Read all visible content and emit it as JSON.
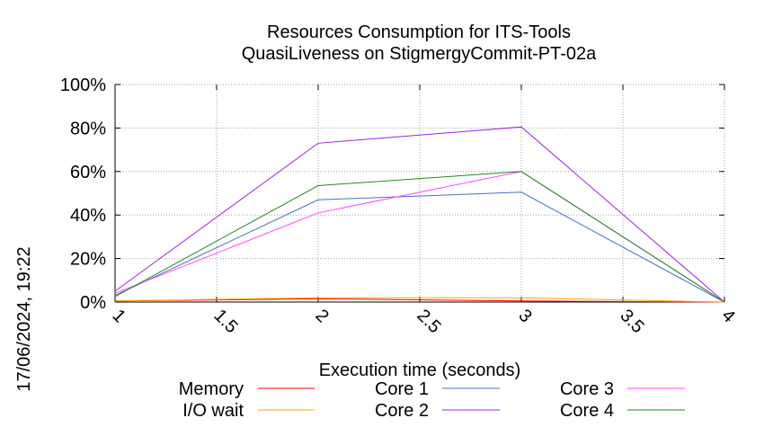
{
  "chart_data": {
    "type": "line",
    "title_line1": "Resources Consumption for ITS-Tools",
    "title_line2": "QuasiLiveness on StigmergyCommit-PT-02a",
    "xlabel": "Execution time (seconds)",
    "ylabel": "",
    "side_label": "17/06/2024, 19:22",
    "xlim": [
      1,
      4
    ],
    "ylim": [
      0,
      100
    ],
    "x_ticks": [
      1,
      1.5,
      2,
      2.5,
      3,
      3.5,
      4
    ],
    "x_tick_labels": [
      "1",
      "1.5",
      "2",
      "2.5",
      "3",
      "3.5",
      "4"
    ],
    "y_ticks": [
      0,
      20,
      40,
      60,
      80,
      100
    ],
    "y_tick_labels": [
      "0%",
      "20%",
      "40%",
      "60%",
      "80%",
      "100%"
    ],
    "grid": true,
    "legend_position": "bottom",
    "x": [
      1,
      2,
      3,
      4
    ],
    "series": [
      {
        "name": "Memory",
        "color": "#ff0000",
        "values": [
          0.5,
          1.5,
          0.5,
          0
        ]
      },
      {
        "name": "I/O wait",
        "color": "#ffa500",
        "values": [
          0.5,
          2,
          2,
          0
        ]
      },
      {
        "name": "Core 1",
        "color": "#4472c4",
        "values": [
          3,
          47,
          50.5,
          0
        ]
      },
      {
        "name": "Core 2",
        "color": "#a020f0",
        "values": [
          5,
          73,
          80.5,
          0
        ]
      },
      {
        "name": "Core 3",
        "color": "#ff44ff",
        "values": [
          4,
          41,
          60,
          0
        ]
      },
      {
        "name": "Core 4",
        "color": "#228b22",
        "values": [
          2.5,
          53.5,
          60,
          0
        ]
      }
    ]
  }
}
